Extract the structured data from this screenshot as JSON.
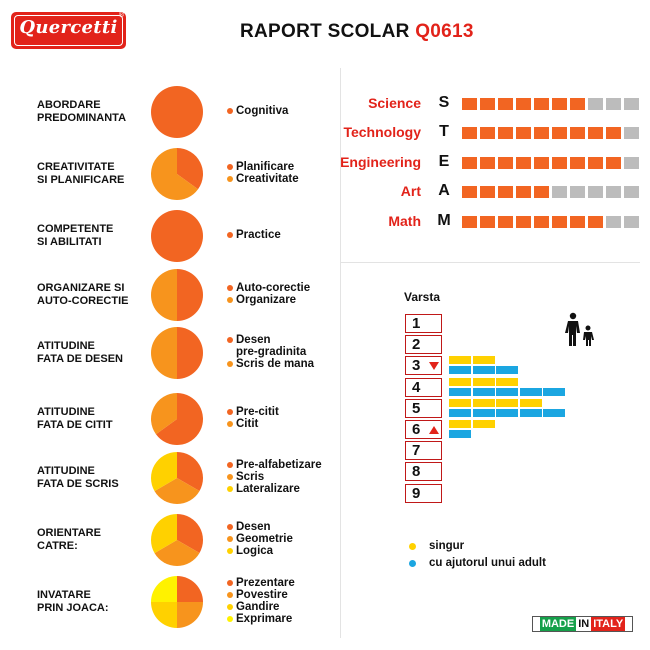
{
  "brand": {
    "logo_text": "Quercetti",
    "registered": "®"
  },
  "header": {
    "title": "RAPORT SCOLAR",
    "code": "Q0613"
  },
  "colors": {
    "dark_orange": "#f26522",
    "orange": "#f7941d",
    "yellow": "#ffd100",
    "light_yellow": "#fff200",
    "grey": "#bcbcbc",
    "red": "#e2231a",
    "blue": "#1ba6e1"
  },
  "chart_data": [
    {
      "type": "pie",
      "rows": [
        {
          "label": [
            "ABORDARE",
            "PREDOMINANTA"
          ],
          "slices": [
            {
              "name": "Cognitiva",
              "value": 100,
              "color": "#f26522"
            }
          ]
        },
        {
          "label": [
            "CREATIVITATE",
            "SI PLANIFICARE"
          ],
          "slices": [
            {
              "name": "Planificare",
              "value": 35,
              "color": "#f26522"
            },
            {
              "name": "Creativitate",
              "value": 65,
              "color": "#f7941d"
            }
          ]
        },
        {
          "label": [
            "COMPETENTE",
            "SI ABILITATI"
          ],
          "slices": [
            {
              "name": "Practice",
              "value": 100,
              "color": "#f26522"
            }
          ]
        },
        {
          "label": [
            "ORGANIZARE SI",
            "AUTO-CORECTIE"
          ],
          "slices": [
            {
              "name": "Auto-corectie",
              "value": 50,
              "color": "#f26522"
            },
            {
              "name": "Organizare",
              "value": 50,
              "color": "#f7941d"
            }
          ]
        },
        {
          "label": [
            "ATITUDINE",
            "FATA DE DESEN"
          ],
          "slices": [
            {
              "name": "Desen pre-gradinita",
              "legend": [
                "Desen",
                "pre-gradinita"
              ],
              "value": 50,
              "color": "#f26522"
            },
            {
              "name": "Scris de mana",
              "value": 50,
              "color": "#f7941d"
            }
          ]
        },
        {
          "label": [
            "ATITUDINE",
            "FATA DE CITIT"
          ],
          "slices": [
            {
              "name": "Pre-citit",
              "value": 65,
              "color": "#f26522"
            },
            {
              "name": "Citit",
              "value": 35,
              "color": "#f7941d"
            }
          ]
        },
        {
          "label": [
            "ATITUDINE",
            "FATA DE SCRIS"
          ],
          "slices": [
            {
              "name": "Pre-alfabetizare",
              "value": 33.3,
              "color": "#f26522"
            },
            {
              "name": "Scris",
              "value": 33.3,
              "color": "#f7941d"
            },
            {
              "name": "Lateralizare",
              "value": 33.4,
              "color": "#ffd100"
            }
          ]
        },
        {
          "label": [
            "ORIENTARE",
            "CATRE:"
          ],
          "slices": [
            {
              "name": "Desen",
              "value": 33.3,
              "color": "#f26522"
            },
            {
              "name": "Geometrie",
              "value": 33.3,
              "color": "#f7941d"
            },
            {
              "name": "Logica",
              "value": 33.4,
              "color": "#ffd100"
            }
          ]
        },
        {
          "label": [
            "INVATARE",
            "PRIN JOACA:"
          ],
          "slices": [
            {
              "name": "Prezentare",
              "value": 25,
              "color": "#f26522"
            },
            {
              "name": "Povestire",
              "value": 25,
              "color": "#f7941d"
            },
            {
              "name": "Gandire",
              "value": 25,
              "color": "#ffd100"
            },
            {
              "name": "Exprimare",
              "value": 25,
              "color": "#fff200"
            }
          ]
        }
      ]
    },
    {
      "type": "bar",
      "title": "STEAM",
      "max": 10,
      "items": [
        {
          "label": "Science",
          "letter": "S",
          "value": 7
        },
        {
          "label": "Technology",
          "letter": "T",
          "value": 9
        },
        {
          "label": "Engineering",
          "letter": "E",
          "value": 9
        },
        {
          "label": "Art",
          "letter": "A",
          "value": 5
        },
        {
          "label": "Math",
          "letter": "M",
          "value": 8
        }
      ]
    },
    {
      "type": "bar",
      "title": "Varsta",
      "ages": [
        1,
        2,
        3,
        4,
        5,
        6,
        7,
        8,
        9
      ],
      "min_age": 3,
      "max_age": 6,
      "series": [
        {
          "name": "singur",
          "color": "#ffd100",
          "values": [
            {
              "age": 3,
              "blocks": 2
            },
            {
              "age": 4,
              "blocks": 3
            },
            {
              "age": 5,
              "blocks": 4
            },
            {
              "age": 6,
              "blocks": 2
            }
          ]
        },
        {
          "name": "cu ajutorul unui adult",
          "color": "#1ba6e1",
          "values": [
            {
              "age": 3,
              "blocks": 3
            },
            {
              "age": 4,
              "blocks": 5
            },
            {
              "age": 5,
              "blocks": 5
            },
            {
              "age": 6,
              "blocks": 1
            }
          ]
        }
      ]
    }
  ],
  "footer": {
    "made": "MADE",
    "in": "IN",
    "italy": "ITALY"
  }
}
